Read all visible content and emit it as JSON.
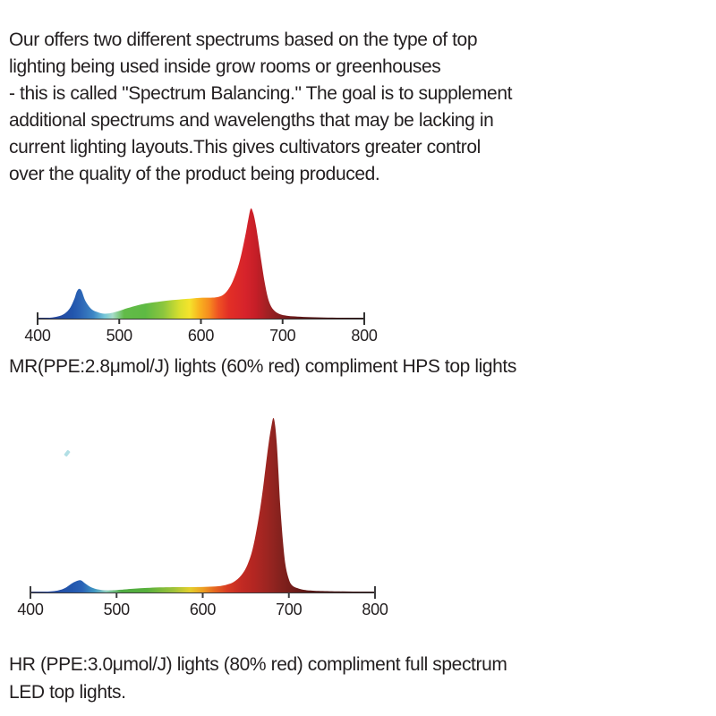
{
  "page": {
    "background": "#ffffff",
    "text_color": "#231f20"
  },
  "intro": {
    "lines": [
      "Our offers two different spectrums based on the type of top",
      "lighting being used inside grow rooms or greenhouses",
      "- this is called \"Spectrum Balancing.\" The goal is to supplement",
      "additional spectrums and wavelengths that may be lacking in",
      "current lighting layouts.This gives cultivators greater control",
      "over the quality of the product being produced."
    ]
  },
  "chart_data": [
    {
      "type": "area",
      "name": "mr-spectrum",
      "title": "",
      "subtitle": "",
      "xlabel": "",
      "ylabel": "",
      "caption_lines": [
        "MR(PPE:2.8μmol/J) lights (60% red) compliment HPS top lights"
      ],
      "xlim": [
        400,
        800
      ],
      "ylim": [
        0,
        1
      ],
      "x_ticks": [
        "400",
        "500",
        "600",
        "700",
        "800"
      ],
      "grid": false,
      "legend": "none",
      "axis_color": "#333333",
      "tick_label_color": "#231f20",
      "peaks": [
        {
          "nm": 450,
          "rel_intensity": 0.27,
          "color_zone": "blue"
        },
        {
          "nm": 661,
          "rel_intensity": 1.0,
          "color_zone": "red"
        }
      ],
      "series": [
        {
          "name": "spectral_power_distribution",
          "x": [
            400,
            415,
            425,
            433,
            440,
            445,
            448,
            451,
            454,
            458,
            463,
            468,
            475,
            482,
            490,
            500,
            510,
            522,
            535,
            550,
            565,
            580,
            592,
            602,
            612,
            620,
            627,
            633,
            639,
            645,
            650,
            655,
            658,
            661,
            664,
            667,
            670,
            674,
            678,
            682,
            686,
            691,
            697,
            705,
            715,
            730,
            750,
            775,
            800
          ],
          "y": [
            0.004,
            0.008,
            0.02,
            0.045,
            0.1,
            0.18,
            0.245,
            0.27,
            0.25,
            0.17,
            0.11,
            0.075,
            0.055,
            0.045,
            0.05,
            0.07,
            0.095,
            0.12,
            0.14,
            0.155,
            0.168,
            0.178,
            0.185,
            0.19,
            0.19,
            0.195,
            0.215,
            0.26,
            0.34,
            0.46,
            0.6,
            0.78,
            0.9,
            1.0,
            0.96,
            0.86,
            0.72,
            0.52,
            0.33,
            0.19,
            0.11,
            0.065,
            0.04,
            0.027,
            0.02,
            0.014,
            0.01,
            0.007,
            0.005
          ]
        }
      ],
      "gradient_stops": [
        {
          "nm": 400,
          "color": "#2a3b8f"
        },
        {
          "nm": 443,
          "color": "#2155ad"
        },
        {
          "nm": 452,
          "color": "#2b63b5"
        },
        {
          "nm": 468,
          "color": "#3d85c4"
        },
        {
          "nm": 482,
          "color": "#74c6d8"
        },
        {
          "nm": 492,
          "color": "#a6dcc8"
        },
        {
          "nm": 506,
          "color": "#62bb49"
        },
        {
          "nm": 532,
          "color": "#5eba43"
        },
        {
          "nm": 554,
          "color": "#8cc63e"
        },
        {
          "nm": 574,
          "color": "#d8df2e"
        },
        {
          "nm": 586,
          "color": "#f5e32c"
        },
        {
          "nm": 598,
          "color": "#f8b31f"
        },
        {
          "nm": 610,
          "color": "#f68b1f"
        },
        {
          "nm": 621,
          "color": "#ef5323"
        },
        {
          "nm": 634,
          "color": "#e22f26"
        },
        {
          "nm": 655,
          "color": "#d6232b"
        },
        {
          "nm": 668,
          "color": "#c41e27"
        },
        {
          "nm": 682,
          "color": "#a02124"
        },
        {
          "nm": 700,
          "color": "#7d1d1e"
        },
        {
          "nm": 726,
          "color": "#5a1717"
        },
        {
          "nm": 760,
          "color": "#421213"
        },
        {
          "nm": 800,
          "color": "#2f0e0e"
        }
      ]
    },
    {
      "type": "area",
      "name": "hr-spectrum",
      "title": "",
      "subtitle": "",
      "xlabel": "",
      "ylabel": "",
      "caption_lines": [
        "HR (PPE:3.0μmol/J) lights (80% red) compliment full spectrum",
        "LED top lights."
      ],
      "xlim": [
        400,
        800
      ],
      "ylim": [
        0,
        1
      ],
      "x_ticks": [
        "400",
        "500",
        "600",
        "700",
        "800"
      ],
      "grid": false,
      "legend": "none",
      "axis_color": "#3d3d3f",
      "tick_label_color": "#231f20",
      "peaks": [
        {
          "nm": 458,
          "rel_intensity": 0.07,
          "color_zone": "blue"
        },
        {
          "nm": 682,
          "rel_intensity": 1.0,
          "color_zone": "deep-red"
        }
      ],
      "series": [
        {
          "name": "spectral_power_distribution",
          "x": [
            400,
            420,
            432,
            440,
            446,
            452,
            458,
            462,
            467,
            472,
            478,
            486,
            495,
            505,
            520,
            535,
            550,
            570,
            590,
            605,
            618,
            628,
            636,
            645,
            652,
            658,
            664,
            669,
            673,
            677,
            680,
            682,
            684,
            686,
            688,
            690,
            693,
            696,
            700,
            704,
            710,
            718,
            730,
            750,
            775,
            800
          ],
          "y": [
            0.003,
            0.005,
            0.012,
            0.025,
            0.045,
            0.062,
            0.07,
            0.058,
            0.04,
            0.027,
            0.018,
            0.013,
            0.013,
            0.016,
            0.022,
            0.026,
            0.029,
            0.031,
            0.031,
            0.033,
            0.036,
            0.045,
            0.06,
            0.1,
            0.16,
            0.25,
            0.4,
            0.56,
            0.72,
            0.87,
            0.96,
            1.0,
            0.96,
            0.85,
            0.68,
            0.5,
            0.3,
            0.16,
            0.075,
            0.04,
            0.025,
            0.015,
            0.01,
            0.007,
            0.005,
            0.004
          ]
        }
      ],
      "gradient_stops": [
        {
          "nm": 400,
          "color": "#2a3b8f"
        },
        {
          "nm": 448,
          "color": "#2257ae"
        },
        {
          "nm": 460,
          "color": "#2a62b6"
        },
        {
          "nm": 474,
          "color": "#3f96c2"
        },
        {
          "nm": 488,
          "color": "#8ecfbf"
        },
        {
          "nm": 506,
          "color": "#4fab42"
        },
        {
          "nm": 535,
          "color": "#57b03c"
        },
        {
          "nm": 566,
          "color": "#9ec23a"
        },
        {
          "nm": 585,
          "color": "#e3cf2c"
        },
        {
          "nm": 600,
          "color": "#eda023"
        },
        {
          "nm": 613,
          "color": "#e66a20"
        },
        {
          "nm": 628,
          "color": "#d83c23"
        },
        {
          "nm": 645,
          "color": "#c22a23"
        },
        {
          "nm": 660,
          "color": "#b22622"
        },
        {
          "nm": 675,
          "color": "#9c2521"
        },
        {
          "nm": 688,
          "color": "#87221e"
        },
        {
          "nm": 702,
          "color": "#751d1a"
        },
        {
          "nm": 722,
          "color": "#5a1715"
        },
        {
          "nm": 752,
          "color": "#421211"
        },
        {
          "nm": 800,
          "color": "#2d0d0d"
        }
      ]
    }
  ]
}
